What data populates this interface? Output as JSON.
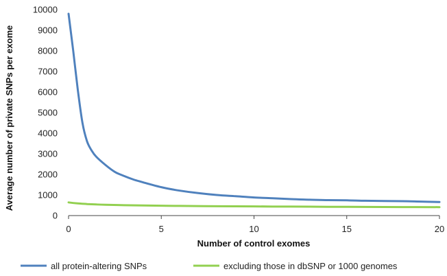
{
  "chart_data": {
    "type": "line",
    "xlabel": "Number of control exomes",
    "ylabel": "Average number of private SNPs per exome",
    "xlim": [
      0,
      20
    ],
    "ylim": [
      0,
      10000
    ],
    "xticks": [
      0,
      5,
      10,
      15,
      20
    ],
    "yticks": [
      0,
      1000,
      2000,
      3000,
      4000,
      5000,
      6000,
      7000,
      8000,
      9000,
      10000
    ],
    "grid": false,
    "legend_position": "bottom",
    "series": [
      {
        "name": "all protein-altering SNPs",
        "color": "#4f81bd",
        "x": [
          0,
          0.25,
          0.5,
          0.75,
          1,
          1.25,
          1.5,
          2,
          2.5,
          3,
          3.5,
          4,
          5,
          6,
          7,
          8,
          9,
          10,
          11,
          12,
          13,
          14,
          15,
          16,
          17,
          18,
          19,
          20
        ],
        "y": [
          9800,
          8000,
          6100,
          4500,
          3600,
          3150,
          2850,
          2450,
          2120,
          1920,
          1750,
          1620,
          1380,
          1210,
          1090,
          1000,
          940,
          880,
          840,
          800,
          770,
          750,
          740,
          720,
          710,
          700,
          680,
          660
        ]
      },
      {
        "name": "excluding those in dbSNP or 1000 genomes",
        "color": "#92d050",
        "x": [
          0,
          0.5,
          1,
          1.5,
          2,
          3,
          4,
          5,
          6,
          8,
          10,
          12,
          14,
          16,
          18,
          20
        ],
        "y": [
          640,
          590,
          560,
          540,
          525,
          505,
          490,
          480,
          470,
          455,
          445,
          435,
          428,
          420,
          415,
          410
        ]
      }
    ]
  }
}
